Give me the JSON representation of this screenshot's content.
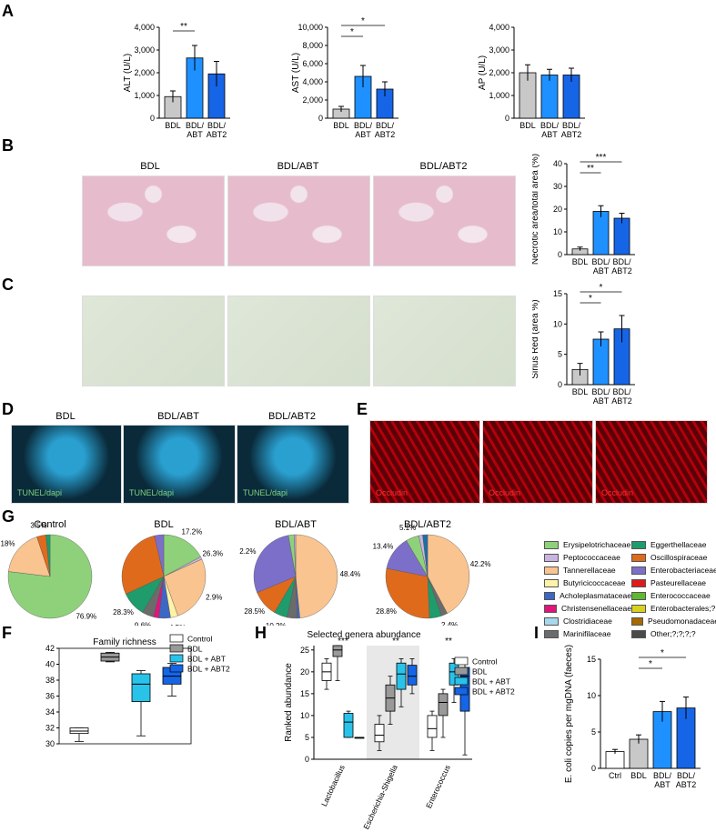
{
  "letters": {
    "A": "A",
    "B": "B",
    "C": "C",
    "D": "D",
    "E": "E",
    "G": "G",
    "F": "F",
    "H": "H",
    "I": "I"
  },
  "colors": {
    "bdl": "#c8c8c8",
    "abt": "#1e90ff",
    "abt2": "#1565e6",
    "ctrl": "#ffffff",
    "cyan": "#29c3ea"
  },
  "panelA": [
    {
      "ylabel": "ALT (U/L)",
      "ticks": [
        "0",
        "1,000",
        "2,000",
        "3,000",
        "4,000"
      ],
      "ymax": 4000,
      "groups": [
        "BDL",
        "BDL/\nABT",
        "BDL/\nABT2"
      ],
      "means": [
        950,
        2650,
        1950
      ],
      "sem": [
        250,
        550,
        550
      ],
      "sig": [
        {
          "from": 0,
          "to": 1,
          "text": "**"
        }
      ]
    },
    {
      "ylabel": "AST (U/L)",
      "ticks": [
        "0",
        "2,000",
        "4,000",
        "6,000",
        "8,000",
        "10,000"
      ],
      "ymax": 10000,
      "groups": [
        "BDL",
        "BDL/\nABT",
        "BDL/\nABT2"
      ],
      "means": [
        1000,
        4600,
        3200
      ],
      "sem": [
        300,
        1200,
        800
      ],
      "sig": [
        {
          "from": 0,
          "to": 1,
          "text": "*"
        },
        {
          "from": 0,
          "to": 2,
          "text": "*"
        }
      ]
    },
    {
      "ylabel": "AP (U/L)",
      "ticks": [
        "0",
        "1,000",
        "2,000",
        "3,000",
        "4,000"
      ],
      "ymax": 4000,
      "groups": [
        "BDL",
        "BDL/\nABT",
        "BDL/\nABT2"
      ],
      "means": [
        2000,
        1900,
        1900
      ],
      "sem": [
        350,
        250,
        300
      ],
      "sig": []
    }
  ],
  "panelB": {
    "images": [
      "BDL",
      "BDL/ABT",
      "BDL/ABT2"
    ],
    "chart": {
      "ylabel": "Necrotic area/total area (%)",
      "ticks": [
        "0",
        "10",
        "20",
        "30",
        "40"
      ],
      "ymax": 40,
      "groups": [
        "BDL",
        "BDL/\nABT",
        "BDL/\nABT2"
      ],
      "means": [
        2.5,
        19,
        16
      ],
      "sem": [
        0.8,
        2.5,
        2.2
      ],
      "sig": [
        {
          "from": 0,
          "to": 1,
          "text": "**"
        },
        {
          "from": 0,
          "to": 2,
          "text": "***"
        }
      ]
    }
  },
  "panelC": {
    "chart": {
      "ylabel": "Sirius Red (area %)",
      "ticks": [
        "0",
        "5",
        "10",
        "15"
      ],
      "ymax": 15,
      "groups": [
        "BDL",
        "BDL/\nABT",
        "BDL/\nABT2"
      ],
      "means": [
        2.5,
        7.5,
        9.2
      ],
      "sem": [
        1,
        1.2,
        2.2
      ],
      "sig": [
        {
          "from": 0,
          "to": 1,
          "text": "*"
        },
        {
          "from": 0,
          "to": 2,
          "text": "*"
        }
      ]
    }
  },
  "panelD": {
    "images": [
      "BDL",
      "BDL/ABT",
      "BDL/ABT2"
    ],
    "tag": "TUNEL/dapi"
  },
  "panelE": {
    "tag": "Occludin"
  },
  "panelG": {
    "pies": [
      {
        "title": "Control",
        "slices": [
          {
            "v": 76.9,
            "c": "#8fd17a"
          },
          {
            "v": 18,
            "c": "#f9c48f"
          },
          {
            "v": 3.5,
            "c": "#e06a1c"
          },
          {
            "v": 1.6,
            "c": "#1e9c6b"
          }
        ],
        "labels": [
          "76.9%",
          "18%",
          "3.5%"
        ]
      },
      {
        "title": "BDL",
        "slices": [
          {
            "v": 17.2,
            "c": "#8fd17a"
          },
          {
            "v": 1,
            "c": "#c9b3e0"
          },
          {
            "v": 26.3,
            "c": "#f9c48f"
          },
          {
            "v": 2.9,
            "c": "#fff3a8"
          },
          {
            "v": 4.5,
            "c": "#3d67c4"
          },
          {
            "v": 2.1,
            "c": "#e0157a"
          },
          {
            "v": 4.5,
            "c": "#6b6b6b"
          },
          {
            "v": 9.6,
            "c": "#1e9c6b"
          },
          {
            "v": 28.3,
            "c": "#e06a1c"
          },
          {
            "v": 3.6,
            "c": "#7c6fc9"
          }
        ],
        "labels": [
          "17.2%",
          "26.3%",
          "2.9%",
          "4.5%",
          "2.1%",
          "4.5%",
          "9.6%",
          "28.3%"
        ]
      },
      {
        "title": "BDL/ABT",
        "slices": [
          {
            "v": 48.4,
            "c": "#f9c48f"
          },
          {
            "v": 1,
            "c": "#3d67c4"
          },
          {
            "v": 3.9,
            "c": "#6b6b6b"
          },
          {
            "v": 5.2,
            "c": "#1e9c6b"
          },
          {
            "v": 10.2,
            "c": "#e06a1c"
          },
          {
            "v": 28.5,
            "c": "#7c6fc9"
          },
          {
            "v": 2.2,
            "c": "#8fd17a"
          },
          {
            "v": 0.6,
            "c": "#c9b3e0"
          }
        ],
        "labels": [
          "48.4%",
          "3.9%",
          "5.2%",
          "10.2%",
          "28.5%",
          "2.2%"
        ]
      },
      {
        "title": "BDL/ABT2",
        "slices": [
          {
            "v": 42.2,
            "c": "#f9c48f"
          },
          {
            "v": 2.4,
            "c": "#6b6b6b"
          },
          {
            "v": 4.7,
            "c": "#1e9c6b"
          },
          {
            "v": 28.8,
            "c": "#e06a1c"
          },
          {
            "v": 13.4,
            "c": "#7c6fc9"
          },
          {
            "v": 5.1,
            "c": "#8fd17a"
          },
          {
            "v": 1.5,
            "c": "#c9b3e0"
          },
          {
            "v": 1.9,
            "c": "#1e6fa6"
          }
        ],
        "labels": [
          "42.2%",
          "2.4%",
          "4.7%",
          "28.8%",
          "13.4%",
          "5.1%"
        ]
      }
    ],
    "legend": [
      {
        "name": "Erysipelotrichaceae",
        "c": "#8fd17a"
      },
      {
        "name": "Eggerthellaceae",
        "c": "#1e9c6b"
      },
      {
        "name": "Peptococcaceae",
        "c": "#c9b3e0"
      },
      {
        "name": "Oscillospiraceae",
        "c": "#e06a1c"
      },
      {
        "name": "Tannerellaceae",
        "c": "#f9c48f"
      },
      {
        "name": "Enterobacteriaceae",
        "c": "#7c6fc9"
      },
      {
        "name": "Butyricicoccaceae",
        "c": "#fff3a8"
      },
      {
        "name": "Pasteurellaceae",
        "c": "#e01a1a"
      },
      {
        "name": "Acholeplasmataceae",
        "c": "#3d67c4"
      },
      {
        "name": "Enterococcaceae",
        "c": "#5fb830"
      },
      {
        "name": "Christensenellaceae",
        "c": "#e0157a"
      },
      {
        "name": "Enterobacterales;?",
        "c": "#d8d020"
      },
      {
        "name": "Clostridiaceae",
        "c": "#a8d8ec"
      },
      {
        "name": "Pseudomonadaceae",
        "c": "#a66a00"
      },
      {
        "name": "Marinifilaceae",
        "c": "#6b6b6b"
      },
      {
        "name": "Other;?;?;?;?",
        "c": "#4a4a4a"
      }
    ]
  },
  "panelF": {
    "title": "Family richness",
    "ticks": [
      "30",
      "32",
      "34",
      "36",
      "38",
      "40",
      "42"
    ],
    "ymin": 30,
    "ymax": 42,
    "boxes": [
      {
        "min": 30.3,
        "q1": 31.3,
        "med": 31.6,
        "q3": 32.0,
        "max": 32.0,
        "c": "#ffffff"
      },
      {
        "min": 40.3,
        "q1": 40.4,
        "med": 40.9,
        "q3": 41.4,
        "max": 41.5,
        "c": "#999999"
      },
      {
        "min": 31,
        "q1": 35.3,
        "med": 37.5,
        "q3": 38.8,
        "max": 39.2,
        "c": "#29c3ea"
      },
      {
        "min": 36,
        "q1": 37.5,
        "med": 38.5,
        "q3": 39.6,
        "max": 40.1,
        "c": "#1565e6"
      }
    ],
    "legend": [
      "Control",
      "BDL",
      "BDL + ABT",
      "BDL + ABT2"
    ]
  },
  "panelH": {
    "title": "Selected genera abundance",
    "ylabel": "Ranked abundance",
    "ticks": [
      "0",
      "5",
      "10",
      "15",
      "20",
      "25"
    ],
    "ymax": 26,
    "genera": [
      "Lactobacillus",
      "Escherichia-Shigella",
      "Enterococcus"
    ],
    "sig": [
      "***",
      "**",
      "**"
    ],
    "boxes": [
      [
        {
          "min": 16,
          "q1": 18,
          "med": 20,
          "q3": 22,
          "max": 23
        },
        {
          "min": 18,
          "q1": 23.5,
          "med": 25,
          "q3": 26,
          "max": 26
        },
        {
          "min": 5,
          "q1": 5,
          "med": 8.5,
          "q3": 10.5,
          "max": 11
        },
        {
          "min": 5,
          "q1": 5,
          "med": 5,
          "q3": 5,
          "max": 5
        }
      ],
      [
        {
          "min": 2,
          "q1": 4,
          "med": 5.5,
          "q3": 8,
          "max": 10
        },
        {
          "min": 8,
          "q1": 11,
          "med": 14,
          "q3": 17,
          "max": 19
        },
        {
          "min": 12,
          "q1": 16,
          "med": 19.5,
          "q3": 22,
          "max": 23
        },
        {
          "min": 15,
          "q1": 17,
          "med": 19,
          "q3": 21.5,
          "max": 23
        }
      ],
      [
        {
          "min": 2,
          "q1": 5,
          "med": 7,
          "q3": 10,
          "max": 11
        },
        {
          "min": 5,
          "q1": 10,
          "med": 13,
          "q3": 15,
          "max": 16
        },
        {
          "min": 13,
          "q1": 17,
          "med": 20,
          "q3": 22,
          "max": 23
        },
        {
          "min": 1,
          "q1": 11,
          "med": 19,
          "q3": 21,
          "max": 23
        }
      ]
    ],
    "legend": [
      "Control",
      "BDL",
      "BDL + ABT",
      "BDL + ABT2"
    ]
  },
  "panelI": {
    "ylabel": "E. coli copies per mgDNA (faeces)",
    "ticks": [
      "0",
      "5",
      "10",
      "15"
    ],
    "ymax": 15,
    "groups": [
      "Ctrl",
      "BDL",
      "BDL/\nABT",
      "BDL/\nABT2"
    ],
    "means": [
      2.3,
      4,
      7.8,
      8.3
    ],
    "sem": [
      0.3,
      0.6,
      1.4,
      1.5
    ],
    "sig": [
      {
        "from": 1,
        "to": 2,
        "text": "*"
      },
      {
        "from": 1,
        "to": 3,
        "text": "*"
      }
    ]
  }
}
